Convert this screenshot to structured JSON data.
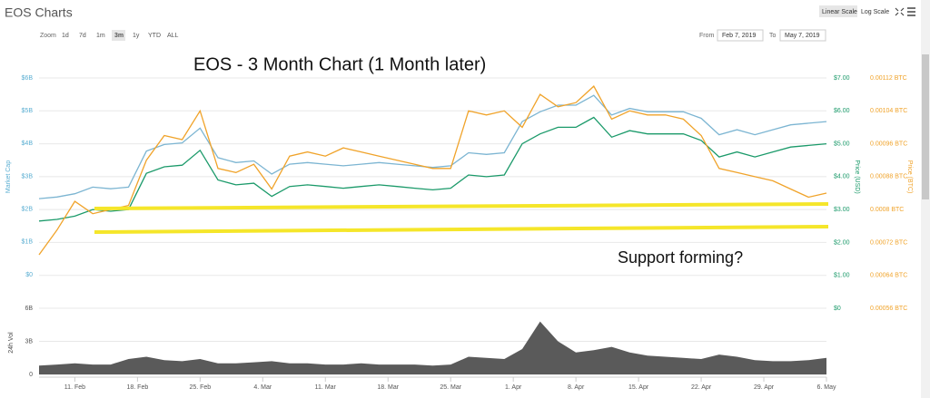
{
  "header": {
    "title": "EOS Charts",
    "scale_buttons": [
      "Linear Scale",
      "Log Scale"
    ],
    "zoom_label": "Zoom",
    "zoom_buttons": [
      "1d",
      "7d",
      "1m",
      "3m",
      "1y",
      "YTD",
      "ALL"
    ],
    "from_label": "From",
    "from_value": "Feb 7, 2019",
    "to_label": "To",
    "to_value": "May 7, 2019"
  },
  "chart_data": [
    {
      "type": "line",
      "annotations": [
        "EOS - 3 Month Chart (1 Month later)",
        "Support forming?"
      ],
      "y_label": "Market Cap",
      "y2_label": "Price (USD)",
      "y3_label": "Price (BTC)",
      "x": [
        "2019-02-07",
        "2019-02-09",
        "2019-02-11",
        "2019-02-13",
        "2019-02-15",
        "2019-02-17",
        "2019-02-19",
        "2019-02-21",
        "2019-02-23",
        "2019-02-25",
        "2019-02-27",
        "2019-03-01",
        "2019-03-03",
        "2019-03-05",
        "2019-03-07",
        "2019-03-09",
        "2019-03-11",
        "2019-03-13",
        "2019-03-15",
        "2019-03-17",
        "2019-03-19",
        "2019-03-21",
        "2019-03-23",
        "2019-03-25",
        "2019-03-27",
        "2019-03-29",
        "2019-03-31",
        "2019-04-02",
        "2019-04-04",
        "2019-04-06",
        "2019-04-08",
        "2019-04-10",
        "2019-04-12",
        "2019-04-14",
        "2019-04-16",
        "2019-04-18",
        "2019-04-20",
        "2019-04-22",
        "2019-04-24",
        "2019-04-26",
        "2019-04-28",
        "2019-04-30",
        "2019-05-02",
        "2019-05-04",
        "2019-05-06"
      ],
      "xticks": [
        {
          "value": "2019-02-11",
          "label": "11. Feb"
        },
        {
          "value": "2019-02-18",
          "label": "18. Feb"
        },
        {
          "value": "2019-02-25",
          "label": "25. Feb"
        },
        {
          "value": "2019-03-04",
          "label": "4. Mar"
        },
        {
          "value": "2019-03-11",
          "label": "11. Mar"
        },
        {
          "value": "2019-03-18",
          "label": "18. Mar"
        },
        {
          "value": "2019-03-25",
          "label": "25. Mar"
        },
        {
          "value": "2019-04-01",
          "label": "1. Apr"
        },
        {
          "value": "2019-04-08",
          "label": "8. Apr"
        },
        {
          "value": "2019-04-15",
          "label": "15. Apr"
        },
        {
          "value": "2019-04-22",
          "label": "22. Apr"
        },
        {
          "value": "2019-04-29",
          "label": "29. Apr"
        },
        {
          "value": "2019-05-06",
          "label": "6. May"
        }
      ],
      "ylim": [
        0,
        6000000000.0
      ],
      "yticks": [
        {
          "value": 0,
          "label": "$0"
        },
        {
          "value": 1000000000.0,
          "label": "$1B"
        },
        {
          "value": 2000000000.0,
          "label": "$2B"
        },
        {
          "value": 3000000000.0,
          "label": "$3B"
        },
        {
          "value": 4000000000.0,
          "label": "$4B"
        },
        {
          "value": 5000000000.0,
          "label": "$5B"
        },
        {
          "value": 6000000000.0,
          "label": "$6B"
        }
      ],
      "y2lim": [
        0,
        7
      ],
      "y2ticks": [
        {
          "value": 0,
          "label": "$0"
        },
        {
          "value": 1,
          "label": "$1.00"
        },
        {
          "value": 2,
          "label": "$2.00"
        },
        {
          "value": 3,
          "label": "$3.00"
        },
        {
          "value": 4,
          "label": "$4.00"
        },
        {
          "value": 5,
          "label": "$5.00"
        },
        {
          "value": 6,
          "label": "$6.00"
        },
        {
          "value": 7,
          "label": "$7.00"
        }
      ],
      "y3lim": [
        0.00056,
        0.00112
      ],
      "y3ticks": [
        {
          "value": 0.00056,
          "label": "0.00056 BTC"
        },
        {
          "value": 0.00064,
          "label": "0.00064 BTC"
        },
        {
          "value": 0.00072,
          "label": "0.00072 BTC"
        },
        {
          "value": 0.0008,
          "label": "0.0008 BTC"
        },
        {
          "value": 0.00088,
          "label": "0.00088 BTC"
        },
        {
          "value": 0.00096,
          "label": "0.00096 BTC"
        },
        {
          "value": 0.00104,
          "label": "0.00104 BTC"
        },
        {
          "value": 0.00112,
          "label": "0.00112 BTC"
        }
      ],
      "grid": true,
      "series": [
        {
          "name": "Market Cap",
          "color": "#7cb5d2",
          "axis": "y",
          "values": [
            2320000000.0,
            2370000000.0,
            2470000000.0,
            2670000000.0,
            2620000000.0,
            2670000000.0,
            3770000000.0,
            3970000000.0,
            4020000000.0,
            4470000000.0,
            3570000000.0,
            3420000000.0,
            3470000000.0,
            3070000000.0,
            3370000000.0,
            3420000000.0,
            3370000000.0,
            3320000000.0,
            3370000000.0,
            3420000000.0,
            3370000000.0,
            3320000000.0,
            3270000000.0,
            3320000000.0,
            3720000000.0,
            3670000000.0,
            3720000000.0,
            4670000000.0,
            4970000000.0,
            5170000000.0,
            5170000000.0,
            5470000000.0,
            4870000000.0,
            5070000000.0,
            4970000000.0,
            4970000000.0,
            4970000000.0,
            4770000000.0,
            4270000000.0,
            4420000000.0,
            4270000000.0,
            4420000000.0,
            4570000000.0,
            4620000000.0,
            4670000000.0
          ]
        },
        {
          "name": "Price (USD)",
          "color": "#1b9a6a",
          "axis": "y2",
          "values": [
            2.65,
            2.7,
            2.8,
            3.0,
            2.95,
            3.0,
            4.1,
            4.3,
            4.35,
            4.8,
            3.9,
            3.75,
            3.8,
            3.4,
            3.7,
            3.75,
            3.7,
            3.65,
            3.7,
            3.75,
            3.7,
            3.65,
            3.6,
            3.65,
            4.05,
            4.0,
            4.05,
            5.0,
            5.3,
            5.5,
            5.5,
            5.8,
            5.2,
            5.4,
            5.3,
            5.3,
            5.3,
            5.1,
            4.6,
            4.75,
            4.6,
            4.75,
            4.9,
            4.95,
            5.0
          ]
        },
        {
          "name": "Price (BTC)",
          "color": "#f0a32a",
          "axis": "y3",
          "values": [
            0.00069,
            0.00075,
            0.00082,
            0.00079,
            0.0008,
            0.00081,
            0.00092,
            0.00098,
            0.00097,
            0.00104,
            0.0009,
            0.00089,
            0.00091,
            0.00085,
            0.00093,
            0.00094,
            0.00093,
            0.00095,
            0.00094,
            0.00093,
            0.00092,
            0.00091,
            0.0009,
            0.0009,
            0.00104,
            0.00103,
            0.00104,
            0.001,
            0.00108,
            0.00105,
            0.00106,
            0.0011,
            0.00102,
            0.00104,
            0.00103,
            0.00103,
            0.00102,
            0.00098,
            0.0009,
            0.00089,
            0.00088,
            0.00087,
            0.00085,
            0.00083,
            0.00084
          ]
        }
      ]
    },
    {
      "type": "area",
      "y_label": "24h Vol",
      "color": "#5a5a5a",
      "ylim": [
        0,
        6000000000.0
      ],
      "yticks": [
        0,
        {
          "value": 3000000000.0,
          "label": "3B"
        },
        {
          "value": 6000000000.0,
          "label": "6B"
        }
      ],
      "grid": true,
      "values": [
        800000000.0,
        900000000.0,
        1000000000.0,
        900000000.0,
        900000000.0,
        1400000000.0,
        1600000000.0,
        1300000000.0,
        1200000000.0,
        1400000000.0,
        1000000000.0,
        1000000000.0,
        1100000000.0,
        1200000000.0,
        1000000000.0,
        1000000000.0,
        900000000.0,
        900000000.0,
        1000000000.0,
        900000000.0,
        900000000.0,
        900000000.0,
        800000000.0,
        900000000.0,
        1600000000.0,
        1500000000.0,
        1400000000.0,
        2300000000.0,
        4800000000.0,
        3000000000.0,
        2000000000.0,
        2200000000.0,
        2500000000.0,
        2000000000.0,
        1700000000.0,
        1600000000.0,
        1500000000.0,
        1400000000.0,
        1800000000.0,
        1600000000.0,
        1300000000.0,
        1200000000.0,
        1200000000.0,
        1300000000.0,
        1500000000.0
      ]
    }
  ]
}
